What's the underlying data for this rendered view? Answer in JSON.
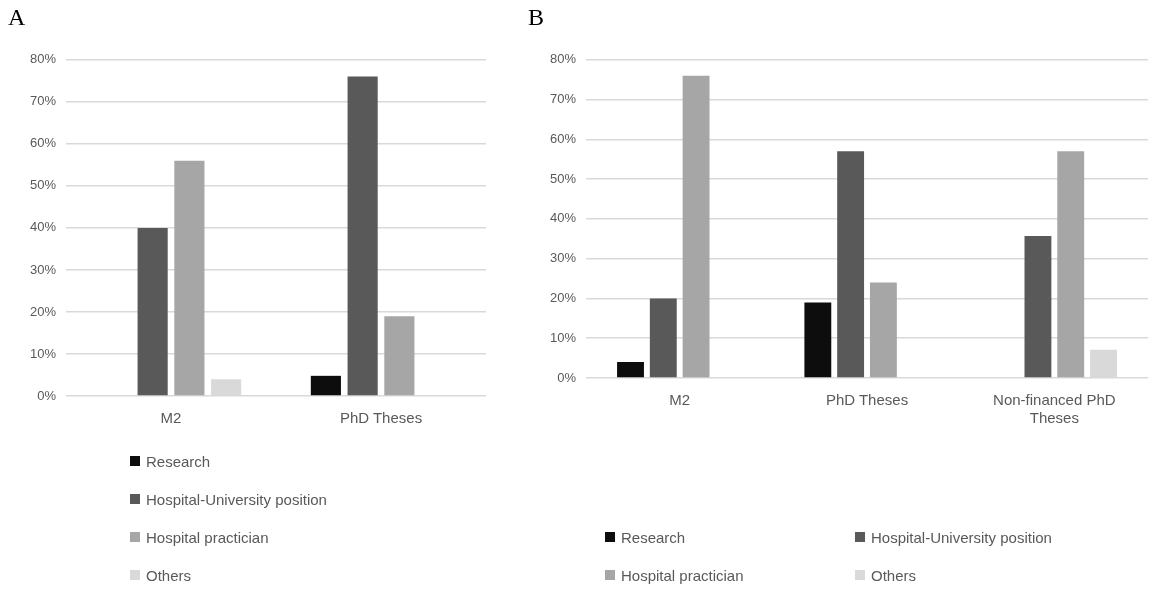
{
  "chart_data": [
    {
      "type": "bar",
      "title": "A",
      "categories": [
        "M2",
        "PhD Theses"
      ],
      "series": [
        {
          "name": "Research",
          "color": "#0d0d0d",
          "values": [
            0,
            4.8
          ]
        },
        {
          "name": "Hospital-University position",
          "color": "#595959",
          "values": [
            40,
            76
          ]
        },
        {
          "name": "Hospital practician",
          "color": "#a6a6a6",
          "values": [
            56,
            19
          ]
        },
        {
          "name": "Others",
          "color": "#d9d9d9",
          "values": [
            4,
            0
          ]
        }
      ],
      "ylim": [
        0,
        80
      ],
      "yticks": [
        {
          "value": 0,
          "label": "0%"
        },
        {
          "value": 10,
          "label": "10%"
        },
        {
          "value": 20,
          "label": "20%"
        },
        {
          "value": 30,
          "label": "30%"
        },
        {
          "value": 40,
          "label": "40%"
        },
        {
          "value": 50,
          "label": "50%"
        },
        {
          "value": 60,
          "label": "60%"
        },
        {
          "value": 70,
          "label": "70%"
        },
        {
          "value": 80,
          "label": "80%"
        }
      ],
      "grid": "y",
      "legend": "bottom"
    },
    {
      "type": "bar",
      "title": "B",
      "categories": [
        "M2",
        "PhD Theses",
        "Non-financed PhD Theses"
      ],
      "series": [
        {
          "name": "Research",
          "color": "#0d0d0d",
          "values": [
            4,
            19,
            0
          ]
        },
        {
          "name": "Hospital-University position",
          "color": "#595959",
          "values": [
            20,
            57,
            35.7
          ]
        },
        {
          "name": "Hospital practician",
          "color": "#a6a6a6",
          "values": [
            76,
            24,
            57
          ]
        },
        {
          "name": "Others",
          "color": "#d9d9d9",
          "values": [
            0,
            0,
            7.1
          ]
        }
      ],
      "ylim": [
        0,
        80
      ],
      "yticks": [
        {
          "value": 0,
          "label": "0%"
        },
        {
          "value": 10,
          "label": "10%"
        },
        {
          "value": 20,
          "label": "20%"
        },
        {
          "value": 30,
          "label": "30%"
        },
        {
          "value": 40,
          "label": "40%"
        },
        {
          "value": 50,
          "label": "50%"
        },
        {
          "value": 60,
          "label": "60%"
        },
        {
          "value": 70,
          "label": "70%"
        },
        {
          "value": 80,
          "label": "80%"
        }
      ],
      "grid": "y",
      "legend": "bottom"
    }
  ]
}
